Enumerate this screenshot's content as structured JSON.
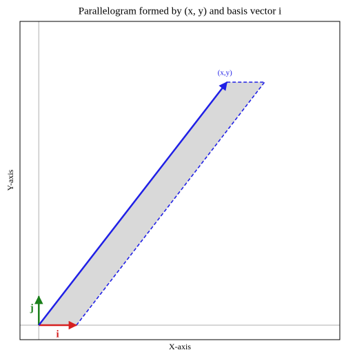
{
  "chart_data": {
    "type": "vector",
    "title": "Parallelogram formed by (x, y) and basis vector i",
    "x_label": "X-axis",
    "y_label": "Y-axis",
    "xlim": [
      -0.5,
      8
    ],
    "ylim": [
      -0.5,
      10.5
    ],
    "fill_color": "#d9d9d9",
    "vectors": [
      {
        "name": "i",
        "color": "#d62020",
        "x": 1,
        "y": 0
      },
      {
        "name": "j",
        "color": "#1a7f1a",
        "x": 0,
        "y": 1
      },
      {
        "name": "(x,y)",
        "color": "#1f1fe6",
        "x": 5,
        "y": 8.4
      }
    ]
  }
}
